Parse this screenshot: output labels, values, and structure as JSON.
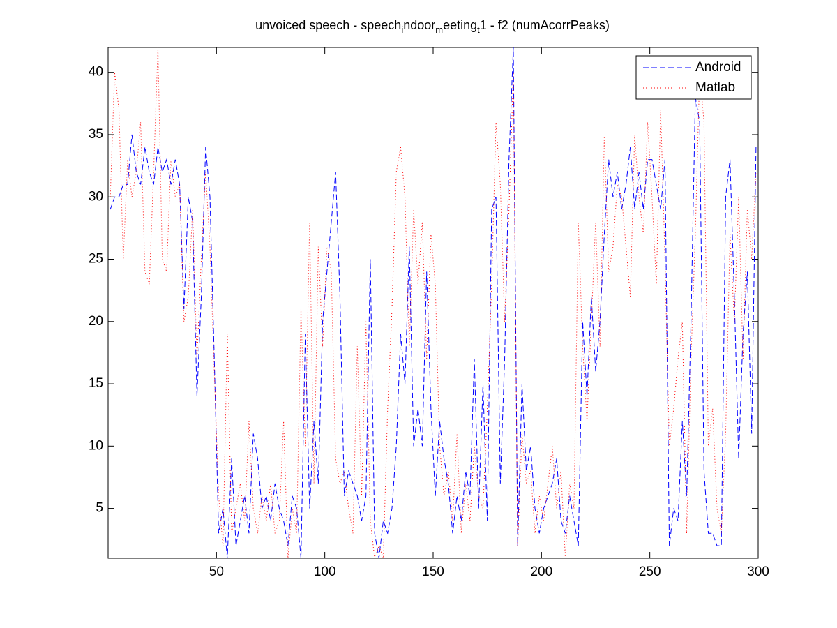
{
  "chart_data": {
    "type": "line",
    "title": [
      "unvoiced speech - speech",
      "i",
      "ndoor",
      "m",
      "eeting",
      "t",
      "1 - f2 (numAcorrPeaks)"
    ],
    "x": [
      1,
      3,
      5,
      7,
      9,
      11,
      13,
      15,
      17,
      19,
      21,
      23,
      25,
      27,
      29,
      31,
      33,
      35,
      37,
      39,
      41,
      43,
      45,
      47,
      49,
      51,
      53,
      55,
      57,
      59,
      61,
      63,
      65,
      67,
      69,
      71,
      73,
      75,
      77,
      79,
      81,
      83,
      85,
      87,
      89,
      91,
      93,
      95,
      97,
      99,
      101,
      103,
      105,
      107,
      109,
      111,
      113,
      115,
      117,
      119,
      121,
      123,
      125,
      127,
      129,
      131,
      133,
      135,
      137,
      139,
      141,
      143,
      145,
      147,
      149,
      151,
      153,
      155,
      157,
      159,
      161,
      163,
      165,
      167,
      169,
      171,
      173,
      175,
      177,
      179,
      181,
      183,
      185,
      187,
      189,
      191,
      193,
      195,
      197,
      199,
      201,
      203,
      205,
      207,
      209,
      211,
      213,
      215,
      217,
      219,
      221,
      223,
      225,
      227,
      229,
      231,
      233,
      235,
      237,
      239,
      241,
      243,
      245,
      247,
      249,
      251,
      253,
      255,
      257,
      259,
      261,
      263,
      265,
      267,
      269,
      271,
      273,
      275,
      277,
      279,
      281,
      283,
      285,
      287,
      289,
      291,
      293,
      295,
      297,
      299
    ],
    "series": [
      {
        "name": "Android",
        "color": "#0000ff",
        "dash": "8,4",
        "values": [
          29,
          30,
          30,
          31,
          31,
          35,
          32,
          31,
          34,
          32,
          31,
          34,
          32,
          33,
          31,
          33,
          31,
          21,
          30,
          28,
          14,
          22,
          34,
          30,
          17,
          3,
          5,
          1,
          9,
          2,
          4,
          6,
          3,
          11,
          9,
          5,
          6,
          4,
          7,
          5,
          4,
          2,
          6,
          5,
          1,
          19,
          5,
          12,
          7,
          20,
          24,
          28,
          32,
          22,
          6,
          8,
          7,
          6,
          4,
          6,
          25,
          3,
          1,
          4,
          3,
          5,
          10,
          19,
          15,
          26,
          10,
          13,
          10,
          24,
          13,
          6,
          12,
          9,
          7,
          3,
          6,
          4,
          8,
          6,
          17,
          5,
          15,
          4,
          29,
          30,
          7,
          17,
          33,
          42,
          2,
          15,
          8,
          10,
          5,
          3,
          5,
          6,
          7,
          9,
          4,
          3,
          6,
          4,
          2,
          20,
          14,
          22,
          16,
          20,
          27,
          33,
          30,
          32,
          29,
          31,
          34,
          29,
          32,
          29,
          33,
          33,
          31,
          29,
          33,
          2,
          5,
          4,
          12,
          6,
          20,
          38,
          36,
          8,
          3,
          3,
          2,
          2,
          30,
          33,
          22,
          9,
          19,
          24,
          11,
          34
        ]
      },
      {
        "name": "Matlab",
        "color": "#ff0000",
        "dash": "1,3",
        "values": [
          30,
          40,
          37,
          25,
          33,
          30,
          32,
          36,
          24,
          23,
          32,
          42,
          25,
          24,
          33,
          30,
          31,
          20,
          22,
          29,
          17,
          25,
          32,
          26,
          16,
          6,
          2,
          19,
          3,
          5,
          7,
          4,
          12,
          5,
          3,
          6,
          4,
          7,
          3,
          4,
          12,
          1,
          5,
          3,
          21,
          10,
          28,
          7,
          26,
          18,
          26,
          24,
          9,
          7,
          8,
          5,
          3,
          18,
          6,
          20,
          4,
          1,
          2,
          1,
          13,
          21,
          32,
          34,
          30,
          18,
          29,
          23,
          28,
          17,
          27,
          23,
          10,
          6,
          8,
          4,
          11,
          3,
          7,
          4,
          10,
          6,
          5,
          13,
          23,
          36,
          31,
          20,
          29,
          40,
          2,
          11,
          7,
          8,
          3,
          6,
          4,
          7,
          10,
          5,
          8,
          1,
          7,
          5,
          28,
          18,
          12,
          20,
          28,
          18,
          35,
          24,
          26,
          31,
          30,
          26,
          22,
          35,
          30,
          27,
          36,
          30,
          23,
          37,
          25,
          10,
          13,
          17,
          20,
          3,
          17,
          27,
          40,
          36,
          10,
          13,
          5,
          3,
          11,
          27,
          20,
          30,
          17,
          29,
          25,
          32
        ]
      }
    ],
    "xlim": [
      0,
      300
    ],
    "xticks": [
      50,
      100,
      150,
      200,
      250,
      300
    ],
    "ylim": [
      1,
      42
    ],
    "yticks": [
      5,
      10,
      15,
      20,
      25,
      30,
      35,
      40
    ],
    "grid": false,
    "legend": "northeast"
  }
}
